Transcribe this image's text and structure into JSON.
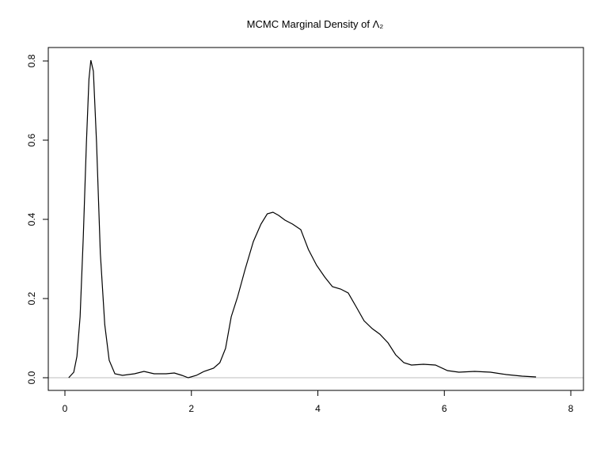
{
  "chart_data": {
    "type": "line",
    "title": "MCMC Marginal Density of Λ₂",
    "x": [
      0.06,
      0.14,
      0.19,
      0.24,
      0.29,
      0.34,
      0.38,
      0.41,
      0.45,
      0.5,
      0.56,
      0.63,
      0.7,
      0.79,
      0.91,
      1.1,
      1.25,
      1.41,
      1.6,
      1.73,
      1.85,
      1.95,
      2.08,
      2.2,
      2.35,
      2.45,
      2.54,
      2.63,
      2.73,
      2.85,
      2.98,
      3.1,
      3.2,
      3.29,
      3.38,
      3.48,
      3.6,
      3.73,
      3.85,
      3.98,
      4.11,
      4.23,
      4.36,
      4.48,
      4.61,
      4.73,
      4.86,
      4.98,
      5.11,
      5.23,
      5.36,
      5.48,
      5.67,
      5.86,
      6.05,
      6.23,
      6.48,
      6.73,
      6.98,
      7.23,
      7.45
    ],
    "series": [
      {
        "color": "#000000",
        "values": [
          0,
          0.014,
          0.054,
          0.154,
          0.354,
          0.594,
          0.754,
          0.802,
          0.774,
          0.594,
          0.314,
          0.134,
          0.044,
          0.01,
          0.006,
          0.01,
          0.016,
          0.01,
          0.01,
          0.012,
          0.006,
          0,
          0.006,
          0.016,
          0.024,
          0.038,
          0.074,
          0.154,
          0.204,
          0.274,
          0.344,
          0.388,
          0.414,
          0.418,
          0.41,
          0.398,
          0.388,
          0.374,
          0.324,
          0.284,
          0.254,
          0.23,
          0.224,
          0.214,
          0.178,
          0.144,
          0.124,
          0.11,
          0.088,
          0.058,
          0.038,
          0.032,
          0.034,
          0.032,
          0.018,
          0.014,
          0.016,
          0.014,
          0.008,
          0.004,
          0.002
        ]
      }
    ],
    "xlim": [
      -0.263,
      8.2
    ],
    "xticks": [
      0,
      2,
      4,
      6,
      8
    ],
    "ylim": [
      -0.032,
      0.834
    ],
    "yticks": [
      {
        "value": 0,
        "label": "0.0"
      },
      0.2,
      0.4,
      0.6,
      0.8
    ],
    "reference_line": {
      "value": 0,
      "color": "#bebebe"
    }
  }
}
